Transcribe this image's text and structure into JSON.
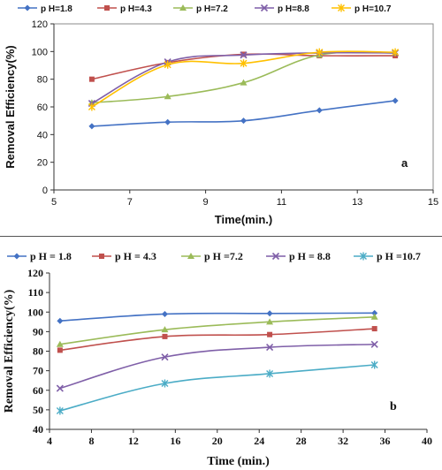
{
  "chart_data": [
    {
      "type": "line",
      "panel_label": "a",
      "xlabel": "Time(min.)",
      "ylabel": "Removal Efficiency(%)",
      "xlim": [
        5,
        15
      ],
      "ylim": [
        0,
        120
      ],
      "xticks": [
        5,
        7,
        9,
        11,
        13,
        15
      ],
      "yticks": [
        0,
        20,
        40,
        60,
        80,
        100,
        120
      ],
      "grid": false,
      "legend": "top",
      "x": [
        6,
        8,
        10,
        12,
        14
      ],
      "series": [
        {
          "name": "p H=1.8",
          "marker": "diamond",
          "color": "#4472C4",
          "values": [
            46,
            49,
            50,
            57.5,
            64.5
          ]
        },
        {
          "name": "p H=4.3",
          "marker": "square",
          "color": "#C0504D",
          "values": [
            80,
            92,
            98,
            97,
            97
          ]
        },
        {
          "name": "p H=7.2",
          "marker": "triangle",
          "color": "#9BBB59",
          "values": [
            63,
            67.5,
            77.5,
            97.5,
            99
          ]
        },
        {
          "name": "p H=8.8",
          "marker": "x",
          "color": "#7F5FA8",
          "values": [
            62.5,
            92.5,
            97.5,
            99,
            99
          ]
        },
        {
          "name": "p H=10.7",
          "marker": "star",
          "color": "#FFC000",
          "values": [
            60,
            90.5,
            91.5,
            99.5,
            99.5
          ]
        }
      ]
    },
    {
      "type": "line",
      "panel_label": "b",
      "xlabel": "Time (min.)",
      "ylabel": "Removal Efficiency(%)",
      "xlim": [
        4,
        40
      ],
      "ylim": [
        40,
        120
      ],
      "xticks": [
        4,
        8,
        12,
        16,
        20,
        24,
        28,
        32,
        36,
        40
      ],
      "yticks": [
        40,
        50,
        60,
        70,
        80,
        90,
        100,
        110,
        120
      ],
      "grid": false,
      "legend": "top",
      "x": [
        5,
        15,
        25,
        35
      ],
      "series": [
        {
          "name": "p H = 1.8",
          "marker": "diamond",
          "color": "#4472C4",
          "values": [
            95.5,
            99,
            99.3,
            99.5
          ]
        },
        {
          "name": "p H = 4.3",
          "marker": "square",
          "color": "#C0504D",
          "values": [
            80.5,
            87.5,
            88.5,
            91.5
          ]
        },
        {
          "name": "p H =7.2",
          "marker": "triangle",
          "color": "#9BBB59",
          "values": [
            83.5,
            91,
            95,
            97.5
          ]
        },
        {
          "name": "p H = 8.8",
          "marker": "x",
          "color": "#7F5FA8",
          "values": [
            61,
            77,
            82,
            83.5
          ]
        },
        {
          "name": "p H =10.7",
          "marker": "star",
          "color": "#4BACC6",
          "values": [
            49.5,
            63.5,
            68.5,
            73
          ]
        }
      ]
    }
  ]
}
